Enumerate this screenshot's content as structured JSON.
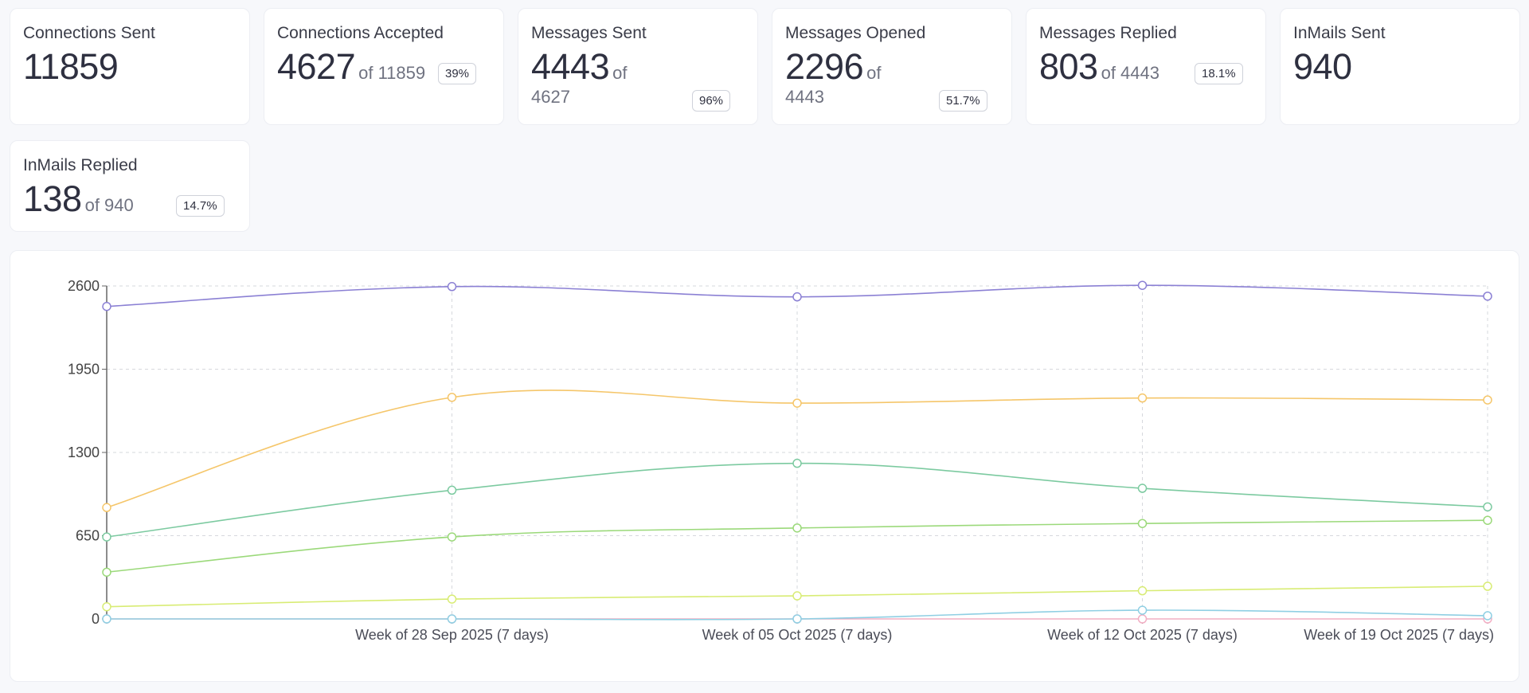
{
  "cards": [
    {
      "title": "Connections Sent",
      "value": "11859"
    },
    {
      "title": "Connections Accepted",
      "value": "4627",
      "of": "of 11859",
      "badge": "39%"
    },
    {
      "title": "Messages Sent",
      "value": "4443",
      "of_word": "of",
      "of_value": "4627",
      "badge": "96%"
    },
    {
      "title": "Messages Opened",
      "value": "2296",
      "of_word": "of",
      "of_value": "4443",
      "badge": "51.7%"
    },
    {
      "title": "Messages Replied",
      "value": "803",
      "of": "of 4443",
      "badge": "18.1%"
    },
    {
      "title": "InMails Sent",
      "value": "940"
    },
    {
      "title": "InMails Replied",
      "value": "138",
      "of": "of 940",
      "badge": "14.7%"
    }
  ],
  "chart_data": {
    "type": "line",
    "title": "",
    "xlabel": "",
    "ylabel": "",
    "ylim": [
      0,
      2600
    ],
    "yticks": [
      "2600",
      "1950",
      "1300",
      "650",
      "0"
    ],
    "grid": true,
    "legend": "none",
    "categories": [
      "",
      "Week of 28 Sep 2025 (7 days)",
      "Week of 05 Oct 2025 (7 days)",
      "Week of 12 Oct 2025 (7 days)",
      "Week of 19 Oct 2025 (7 days)"
    ],
    "series": [
      {
        "name": "series-purple",
        "color": "#8b80d4",
        "values": [
          2440,
          2595,
          2515,
          2605,
          2520
        ]
      },
      {
        "name": "series-orange",
        "color": "#f5c66a",
        "values": [
          870,
          1730,
          1685,
          1725,
          1710
        ]
      },
      {
        "name": "series-teal",
        "color": "#7ccaa0",
        "values": [
          640,
          1005,
          1215,
          1020,
          875
        ]
      },
      {
        "name": "series-green",
        "color": "#9bd97a",
        "values": [
          365,
          640,
          710,
          745,
          770
        ]
      },
      {
        "name": "series-yellowgreen",
        "color": "#d8ec74",
        "values": [
          95,
          155,
          180,
          220,
          255
        ]
      },
      {
        "name": "series-blue",
        "color": "#8fcfe3",
        "values": [
          0,
          0,
          0,
          68,
          25
        ]
      },
      {
        "name": "series-pink",
        "color": "#f2afc4",
        "values": [
          0,
          0,
          0,
          0,
          0
        ]
      }
    ]
  }
}
